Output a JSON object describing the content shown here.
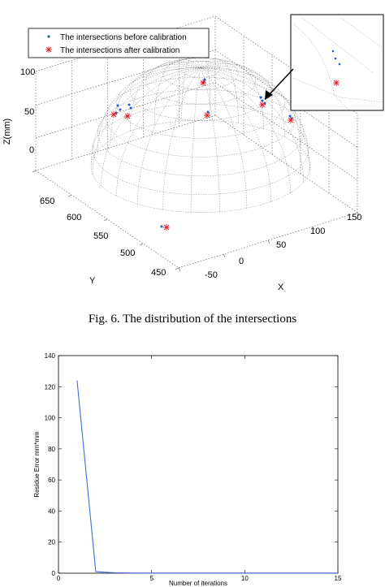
{
  "chart_data": [
    {
      "type": "scatter",
      "title": "",
      "legend": {
        "placement": "top-left",
        "entries": [
          {
            "marker": "dot",
            "color": "#1f5fbf",
            "label": "The intersections before calibration"
          },
          {
            "marker": "asterisk",
            "color": "#e0202a",
            "label": "The intersections after calibration"
          }
        ]
      },
      "axes": {
        "xlabel": "X",
        "ylabel": "Y",
        "zlabel": "Z(mm)",
        "x_ticks": [
          "-50",
          "0",
          "50",
          "100",
          "150"
        ],
        "y_ticks": [
          "450",
          "500",
          "550",
          "600",
          "650"
        ],
        "z_ticks": [
          "0",
          "50",
          "100"
        ]
      },
      "grid": true,
      "inset": true
    },
    {
      "type": "line",
      "title": "",
      "xlabel": "Number of iterations",
      "ylabel": "Residue Error mm*mm",
      "xlim": [
        0,
        15
      ],
      "ylim": [
        0,
        140
      ],
      "x_ticks": [
        "0",
        "5",
        "10",
        "15"
      ],
      "y_ticks": [
        "0",
        "20",
        "40",
        "60",
        "80",
        "100",
        "120",
        "140"
      ],
      "x": [
        1,
        2,
        3,
        4,
        5,
        6,
        7,
        8,
        9,
        10,
        11,
        12,
        13,
        14,
        15
      ],
      "y": [
        124,
        1,
        0.3,
        0.1,
        0.1,
        0.1,
        0.1,
        0.1,
        0.1,
        0.1,
        0.1,
        0.1,
        0.1,
        0.1,
        0.1
      ],
      "line_color": "#3b6fd0"
    }
  ],
  "caption": "Fig. 6.   The distribution of the intersections"
}
